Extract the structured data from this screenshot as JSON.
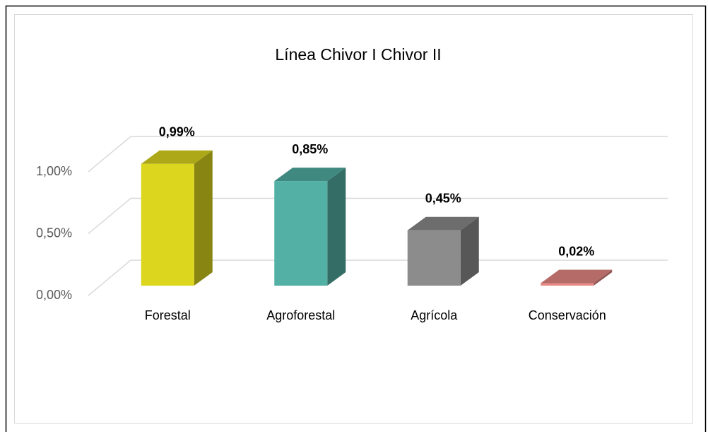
{
  "chart_data": {
    "type": "bar",
    "title": "Línea Chivor I Chivor II",
    "categories": [
      "Forestal",
      "Agroforestal",
      "Agrícola",
      "Conservación"
    ],
    "values": [
      0.99,
      0.85,
      0.45,
      0.02
    ],
    "value_labels": [
      "0,99%",
      "0,85%",
      "0,45%",
      "0,02%"
    ],
    "colors": [
      "#dcd71e",
      "#52b0a4",
      "#8c8c8c",
      "#e88a86"
    ],
    "ylim": [
      0,
      1
    ],
    "yticks": [
      {
        "value": 0,
        "label": "0,00%"
      },
      {
        "value": 0.5,
        "label": "0,50%"
      },
      {
        "value": 1,
        "label": "1,00%"
      }
    ],
    "grid": true
  }
}
